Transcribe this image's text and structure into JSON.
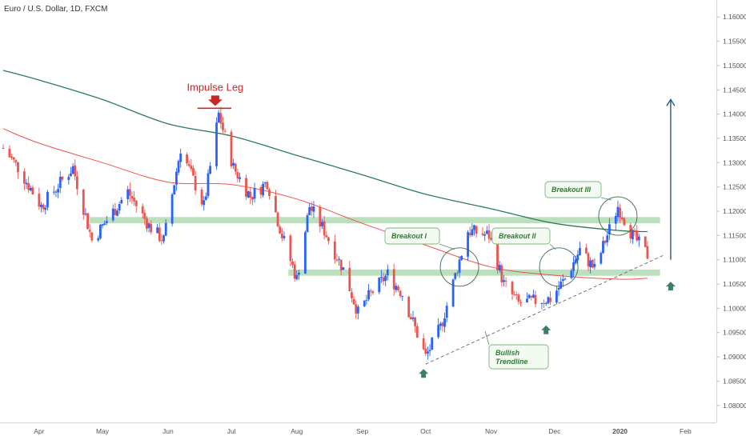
{
  "header": {
    "symbol_title": "Euro / U.S. Dollar, 1D, FXCM"
  },
  "annotations": {
    "impulse_leg": "Impulse Leg",
    "breakout_1": "Breakout I",
    "breakout_2": "Breakout II",
    "breakout_3": "Breakout III",
    "trendline_line1": "Bullish",
    "trendline_line2": "Trendline"
  },
  "colors": {
    "bull": "#2962ff",
    "bear": "#ef5350",
    "ma_slow": "#2e7d4f",
    "ma_fast": "#ef5350",
    "zone": "#a5d6a7",
    "callout_text": "#2e7d32",
    "target_arrow": "#1f5a8a",
    "marker_arrow": "#3f7d6b",
    "impulse": "#c62828"
  },
  "chart_data": {
    "type": "candlestick",
    "x_ticks": [
      "Apr",
      "May",
      "Jun",
      "Jul",
      "Aug",
      "Sep",
      "Oct",
      "Nov",
      "Dec",
      "2020",
      "Feb"
    ],
    "y_ticks": [
      "1.16000",
      "1.15500",
      "1.15000",
      "1.14500",
      "1.14000",
      "1.13500",
      "1.13000",
      "1.12500",
      "1.12000",
      "1.11500",
      "1.11000",
      "1.10500",
      "1.10000",
      "1.09500",
      "1.09000",
      "1.08500",
      "1.08000"
    ],
    "ylim": [
      1.0765,
      1.1635
    ],
    "anchors": [
      {
        "date": "2019-03-15",
        "price": 1.133
      },
      {
        "date": "2019-03-22",
        "price": 1.129
      },
      {
        "date": "2019-04-02",
        "price": 1.121
      },
      {
        "date": "2019-04-17",
        "price": 1.129
      },
      {
        "date": "2019-04-26",
        "price": 1.114
      },
      {
        "date": "2019-05-13",
        "price": 1.124
      },
      {
        "date": "2019-05-23",
        "price": 1.117
      },
      {
        "date": "2019-05-30",
        "price": 1.114
      },
      {
        "date": "2019-06-07",
        "price": 1.133
      },
      {
        "date": "2019-06-18",
        "price": 1.121
      },
      {
        "date": "2019-06-25",
        "price": 1.14
      },
      {
        "date": "2019-07-02",
        "price": 1.129
      },
      {
        "date": "2019-07-10",
        "price": 1.123
      },
      {
        "date": "2019-07-18",
        "price": 1.126
      },
      {
        "date": "2019-07-25",
        "price": 1.115
      },
      {
        "date": "2019-08-01",
        "price": 1.106
      },
      {
        "date": "2019-08-07",
        "price": 1.121
      },
      {
        "date": "2019-08-14",
        "price": 1.116
      },
      {
        "date": "2019-08-23",
        "price": 1.108
      },
      {
        "date": "2019-08-30",
        "price": 1.099
      },
      {
        "date": "2019-09-05",
        "price": 1.103
      },
      {
        "date": "2019-09-13",
        "price": 1.107
      },
      {
        "date": "2019-09-20",
        "price": 1.103
      },
      {
        "date": "2019-10-01",
        "price": 1.09
      },
      {
        "date": "2019-10-08",
        "price": 1.096
      },
      {
        "date": "2019-10-21",
        "price": 1.116
      },
      {
        "date": "2019-10-31",
        "price": 1.115
      },
      {
        "date": "2019-11-07",
        "price": 1.105
      },
      {
        "date": "2019-11-14",
        "price": 1.101
      },
      {
        "date": "2019-11-29",
        "price": 1.102
      },
      {
        "date": "2019-12-06",
        "price": 1.106
      },
      {
        "date": "2019-12-13",
        "price": 1.112
      },
      {
        "date": "2019-12-20",
        "price": 1.108
      },
      {
        "date": "2019-12-31",
        "price": 1.121
      },
      {
        "date": "2020-01-07",
        "price": 1.115
      },
      {
        "date": "2020-01-14",
        "price": 1.111
      }
    ],
    "ma_slow": [
      {
        "date": "2019-03-15",
        "price": 1.149
      },
      {
        "date": "2019-04-01",
        "price": 1.147
      },
      {
        "date": "2019-05-01",
        "price": 1.143
      },
      {
        "date": "2019-06-01",
        "price": 1.138
      },
      {
        "date": "2019-07-01",
        "price": 1.1355
      },
      {
        "date": "2019-08-01",
        "price": 1.1315
      },
      {
        "date": "2019-09-01",
        "price": 1.1275
      },
      {
        "date": "2019-10-01",
        "price": 1.1235
      },
      {
        "date": "2019-11-01",
        "price": 1.1205
      },
      {
        "date": "2019-12-01",
        "price": 1.1175
      },
      {
        "date": "2020-01-01",
        "price": 1.116
      },
      {
        "date": "2020-01-14",
        "price": 1.1158
      }
    ],
    "ma_fast": [
      {
        "date": "2019-03-15",
        "price": 1.137
      },
      {
        "date": "2019-04-01",
        "price": 1.134
      },
      {
        "date": "2019-05-01",
        "price": 1.13
      },
      {
        "date": "2019-06-01",
        "price": 1.126
      },
      {
        "date": "2019-07-01",
        "price": 1.1255
      },
      {
        "date": "2019-08-01",
        "price": 1.1225
      },
      {
        "date": "2019-09-01",
        "price": 1.1175
      },
      {
        "date": "2019-10-01",
        "price": 1.113
      },
      {
        "date": "2019-11-01",
        "price": 1.1085
      },
      {
        "date": "2019-12-01",
        "price": 1.1068
      },
      {
        "date": "2020-01-01",
        "price": 1.106
      },
      {
        "date": "2020-01-14",
        "price": 1.1062
      }
    ],
    "resistance_zone": {
      "from": "2019-04-25",
      "to": "2020-01-20",
      "low": 1.1175,
      "high": 1.1188
    },
    "support_zone": {
      "from": "2019-07-28",
      "to": "2020-01-20",
      "low": 1.1067,
      "high": 1.108
    },
    "trendline": {
      "start": {
        "date": "2019-10-01",
        "price": 1.0885
      },
      "end": {
        "date": "2020-01-22",
        "price": 1.111
      }
    },
    "impulse_leg_level": {
      "from": "2019-06-15",
      "to": "2019-07-01",
      "price": 1.1412
    },
    "target_arrow": {
      "date": "2020-01-25",
      "from": 1.11,
      "to": 1.143
    },
    "breakout_circles": [
      {
        "label": "Breakout I",
        "date": "2019-10-17",
        "price": 1.1085
      },
      {
        "label": "Breakout II",
        "date": "2019-12-03",
        "price": 1.1085
      },
      {
        "label": "Breakout III",
        "date": "2019-12-31",
        "price": 1.119
      }
    ],
    "up_markers": [
      {
        "date": "2019-09-30",
        "price": 1.0865
      },
      {
        "date": "2019-11-27",
        "price": 1.0955
      },
      {
        "date": "2020-01-25",
        "price": 1.1045
      }
    ]
  }
}
